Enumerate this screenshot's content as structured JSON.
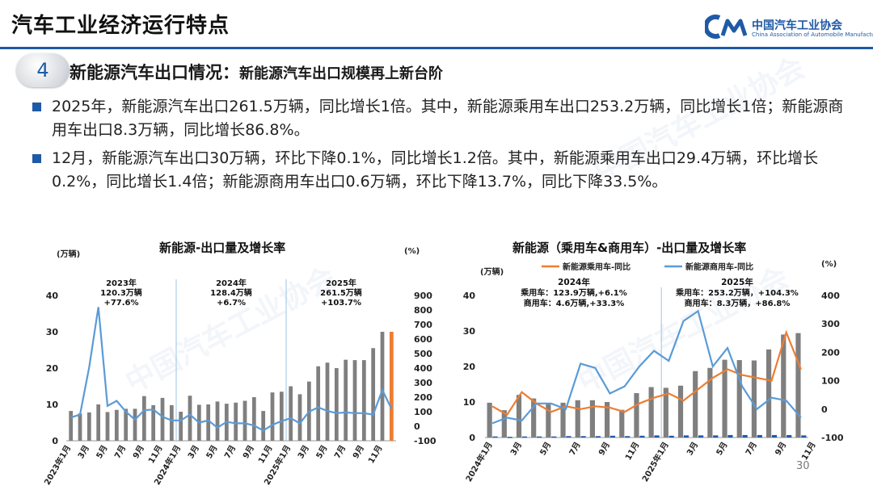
{
  "header": {
    "title": "汽车工业经济运行特点",
    "logo_cn": "中国汽车工业协会",
    "logo_en": "China Association of Automobile Manufacturers"
  },
  "section": {
    "number": "4",
    "title_main": "新能源汽车出口情况：",
    "title_sub": "新能源汽车出口规模再上新台阶"
  },
  "bullets": [
    "2025年，新能源汽车出口261.5万辆，同比增长1倍。其中，新能源乘用车出口253.2万辆，同比增长1倍；新能源商用车出口8.3万辆，同比增长86.8%。",
    "12月，新能源汽车出口30万辆，环比下降0.1%，同比增长1.2倍。其中，新能源乘用车出口29.4万辆，环比增长0.2%，同比增长1.4倍；新能源商用车出口0.6万辆，环比下降13.7%，同比下降33.5%。"
  ],
  "page_number": "30",
  "chart_data": [
    {
      "type": "bar",
      "title": "新能源-出口量及增长率",
      "y_unit": "(万辆)",
      "y2_unit": "(%)",
      "ylim": [
        0,
        40
      ],
      "yticks": [
        "0",
        "10",
        "20",
        "30",
        "40"
      ],
      "y2lim": [
        -100,
        900
      ],
      "y2ticks": [
        "-100",
        "0",
        "100",
        "200",
        "300",
        "400",
        "500",
        "600",
        "700",
        "800",
        "900"
      ],
      "x_tick_labels": [
        "2023年1月",
        "3月",
        "5月",
        "7月",
        "9月",
        "11月",
        "2024年1月",
        "3月",
        "5月",
        "7月",
        "9月",
        "11月",
        "2025年1月",
        "3月",
        "5月",
        "7月",
        "9月",
        "11月"
      ],
      "bar_values": [
        8.2,
        7.5,
        7.8,
        10.0,
        7.9,
        8.5,
        8.8,
        8.8,
        12.3,
        9.8,
        11.8,
        9.8,
        8.0,
        12.4,
        9.9,
        10.0,
        10.8,
        10.2,
        10.5,
        11.0,
        12.0,
        8.2,
        13.3,
        13.5,
        15.0,
        12.8,
        16.3,
        20.5,
        21.5,
        20.0,
        22.3,
        22.2,
        22.2,
        25.5,
        30.0,
        30.0
      ],
      "highlight_index": 35,
      "growth_rate": [
        60,
        80,
        405,
        820,
        140,
        175,
        100,
        45,
        110,
        115,
        65,
        40,
        40,
        80,
        25,
        40,
        -10,
        30,
        20,
        20,
        5,
        -30,
        10,
        35,
        55,
        20,
        100,
        130,
        105,
        90,
        95,
        90,
        90,
        80,
        250,
        120
      ],
      "annotations": [
        {
          "year": "2023年",
          "volume": "120.3万辆",
          "rate": "+77.6%"
        },
        {
          "year": "2024年",
          "volume": "128.4万辆",
          "rate": "+6.7%"
        },
        {
          "year": "2025年",
          "volume": "261.5万辆",
          "rate": "+103.7%"
        }
      ],
      "colors": {
        "bar": "#7f7f7f",
        "highlight": "#ed7d31",
        "line": "#5b9bd5"
      }
    },
    {
      "type": "bar",
      "title": "新能源（乘用车&商用车）-出口量及增长率",
      "y_unit": "(万辆)",
      "y2_unit": "(%)",
      "ylim": [
        0,
        40
      ],
      "yticks": [
        "0",
        "10",
        "20",
        "30",
        "40"
      ],
      "y2lim": [
        -100,
        400
      ],
      "y2ticks": [
        "-100",
        "0",
        "100",
        "200",
        "300",
        "400"
      ],
      "x_tick_labels": [
        "2024年1月",
        "3月",
        "5月",
        "7月",
        "9月",
        "11月",
        "2025年1月",
        "3月",
        "5月",
        "7月",
        "9月",
        "11月"
      ],
      "legend": [
        "新能源乘用车-同比",
        "新能源商用车-同比"
      ],
      "passenger_bars": [
        9.8,
        7.7,
        12.0,
        11.0,
        9.5,
        9.8,
        10.5,
        10.5,
        10.0,
        7.8,
        12.5,
        14.2,
        14.0,
        14.6,
        18.7,
        19.6,
        21.9,
        21.8,
        21.7,
        24.8,
        29.0,
        29.4
      ],
      "commercial_bars": [
        0.3,
        0.2,
        0.3,
        0.3,
        0.3,
        0.4,
        0.4,
        0.4,
        0.5,
        0.4,
        0.5,
        0.6,
        0.5,
        0.6,
        0.6,
        0.6,
        0.7,
        0.7,
        0.7,
        0.7,
        0.7,
        0.6
      ],
      "passenger_growth": [
        10,
        -20,
        60,
        20,
        -10,
        10,
        0,
        10,
        5,
        -10,
        20,
        40,
        55,
        30,
        70,
        110,
        140,
        120,
        110,
        100,
        270,
        140
      ],
      "commercial_growth": [
        -50,
        -30,
        -40,
        20,
        20,
        0,
        160,
        145,
        55,
        80,
        150,
        205,
        170,
        310,
        345,
        150,
        215,
        80,
        0,
        40,
        30,
        -30
      ],
      "annotations": [
        {
          "year": "2024年",
          "passenger": "乘用车：123.9万辆,+6.1%",
          "commercial": "商用车：4.6万辆,+33.3%"
        },
        {
          "year": "2025年",
          "passenger": "乘用车：253.2万辆，+104.3%",
          "commercial": "商用车：8.3万辆，+86.8%"
        }
      ],
      "colors": {
        "passenger_bar": "#7f7f7f",
        "commercial_bar": "#1f5aa6",
        "passenger_line": "#ed7d31",
        "commercial_line": "#5b9bd5"
      }
    }
  ]
}
